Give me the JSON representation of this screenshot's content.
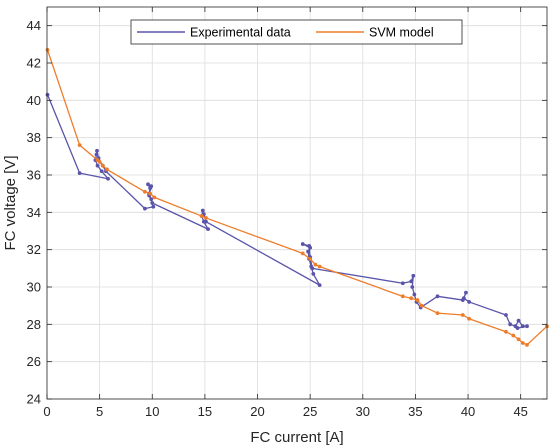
{
  "chart_data": {
    "type": "line",
    "xlabel": "FC current [A]",
    "ylabel": "FC voltage [V]",
    "xlim": [
      0,
      47.5
    ],
    "ylim": [
      24,
      45
    ],
    "xticks": [
      0,
      5,
      10,
      15,
      20,
      25,
      30,
      35,
      40,
      45
    ],
    "yticks": [
      24,
      26,
      28,
      30,
      32,
      34,
      36,
      38,
      40,
      42,
      44
    ],
    "grid": true,
    "legend": "top-center",
    "series": [
      {
        "name": "Experimental data",
        "color": "#5a55aa",
        "marker": "dot",
        "points": [
          [
            0.05,
            40.3
          ],
          [
            3.1,
            36.1
          ],
          [
            5.8,
            35.8
          ],
          [
            5.2,
            36.2
          ],
          [
            4.8,
            36.5
          ],
          [
            4.6,
            36.8
          ],
          [
            4.7,
            37.1
          ],
          [
            4.75,
            37.3
          ],
          [
            4.9,
            36.9
          ],
          [
            5.3,
            36.5
          ],
          [
            5.6,
            36.2
          ],
          [
            9.3,
            34.2
          ],
          [
            10.1,
            34.3
          ],
          [
            9.9,
            34.7
          ],
          [
            9.7,
            35.0
          ],
          [
            9.8,
            35.3
          ],
          [
            9.6,
            35.5
          ],
          [
            9.9,
            35.4
          ],
          [
            9.7,
            34.9
          ],
          [
            10.0,
            34.5
          ],
          [
            15.3,
            33.1
          ],
          [
            14.9,
            33.5
          ],
          [
            14.7,
            33.8
          ],
          [
            14.8,
            34.1
          ],
          [
            14.9,
            33.9
          ],
          [
            15.1,
            33.5
          ],
          [
            25.9,
            30.1
          ],
          [
            25.3,
            30.7
          ],
          [
            25.1,
            31.1
          ],
          [
            24.9,
            31.5
          ],
          [
            24.8,
            31.9
          ],
          [
            25.0,
            32.1
          ],
          [
            24.3,
            32.3
          ],
          [
            24.9,
            32.2
          ],
          [
            25.0,
            31.6
          ],
          [
            25.2,
            31.0
          ],
          [
            33.8,
            30.2
          ],
          [
            34.6,
            30.3
          ],
          [
            34.8,
            30.6
          ],
          [
            34.7,
            30.0
          ],
          [
            34.9,
            29.6
          ],
          [
            35.1,
            29.2
          ],
          [
            35.5,
            28.9
          ],
          [
            37.1,
            29.5
          ],
          [
            39.5,
            29.3
          ],
          [
            39.8,
            29.7
          ],
          [
            39.6,
            29.4
          ],
          [
            40.1,
            29.2
          ],
          [
            43.6,
            28.5
          ],
          [
            44.0,
            28.0
          ],
          [
            44.5,
            27.9
          ],
          [
            44.8,
            28.2
          ],
          [
            45.2,
            27.9
          ],
          [
            45.6,
            27.9
          ],
          [
            44.7,
            27.8
          ]
        ]
      },
      {
        "name": "SVM model",
        "color": "#ee7d2b",
        "marker": "dot",
        "points": [
          [
            0.05,
            42.7
          ],
          [
            3.1,
            37.6
          ],
          [
            4.8,
            36.8
          ],
          [
            5.0,
            36.7
          ],
          [
            5.3,
            36.5
          ],
          [
            5.7,
            36.3
          ],
          [
            9.3,
            35.1
          ],
          [
            9.8,
            35.0
          ],
          [
            10.2,
            34.8
          ],
          [
            14.7,
            33.8
          ],
          [
            15.1,
            33.7
          ],
          [
            24.3,
            31.8
          ],
          [
            25.0,
            31.5
          ],
          [
            25.5,
            31.2
          ],
          [
            25.9,
            31.1
          ],
          [
            33.8,
            29.5
          ],
          [
            34.6,
            29.4
          ],
          [
            35.2,
            29.3
          ],
          [
            35.6,
            29.0
          ],
          [
            37.1,
            28.6
          ],
          [
            39.5,
            28.5
          ],
          [
            40.1,
            28.3
          ],
          [
            43.6,
            27.6
          ],
          [
            44.3,
            27.4
          ],
          [
            44.8,
            27.2
          ],
          [
            45.2,
            27.0
          ],
          [
            45.6,
            26.9
          ],
          [
            47.5,
            27.9
          ]
        ]
      }
    ]
  }
}
